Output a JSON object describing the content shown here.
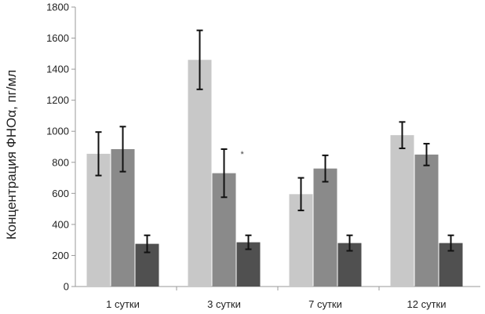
{
  "chart_data": {
    "type": "bar",
    "title": "",
    "xlabel": "",
    "ylabel": "Концентрация ФНОα, пг/мл",
    "ylim": [
      0,
      1800
    ],
    "yticks": [
      0,
      200,
      400,
      600,
      800,
      1000,
      1200,
      1400,
      1600,
      1800
    ],
    "grid": false,
    "legend": "none",
    "categories": [
      "1 сутки",
      "3 сутки",
      "7 сутки",
      "12 сутки"
    ],
    "series": [
      {
        "color": "#c8c8c8",
        "values": [
          855,
          1460,
          595,
          975
        ],
        "errors": [
          140,
          190,
          105,
          85
        ]
      },
      {
        "color": "#8a8a8a",
        "values": [
          885,
          730,
          760,
          850
        ],
        "errors": [
          145,
          155,
          85,
          70
        ]
      },
      {
        "color": "#505050",
        "values": [
          275,
          285,
          280,
          280
        ],
        "errors": [
          55,
          45,
          50,
          50
        ]
      }
    ],
    "annotations": [
      {
        "text": "*",
        "category": "3 сутки",
        "series_index": 1
      }
    ]
  }
}
